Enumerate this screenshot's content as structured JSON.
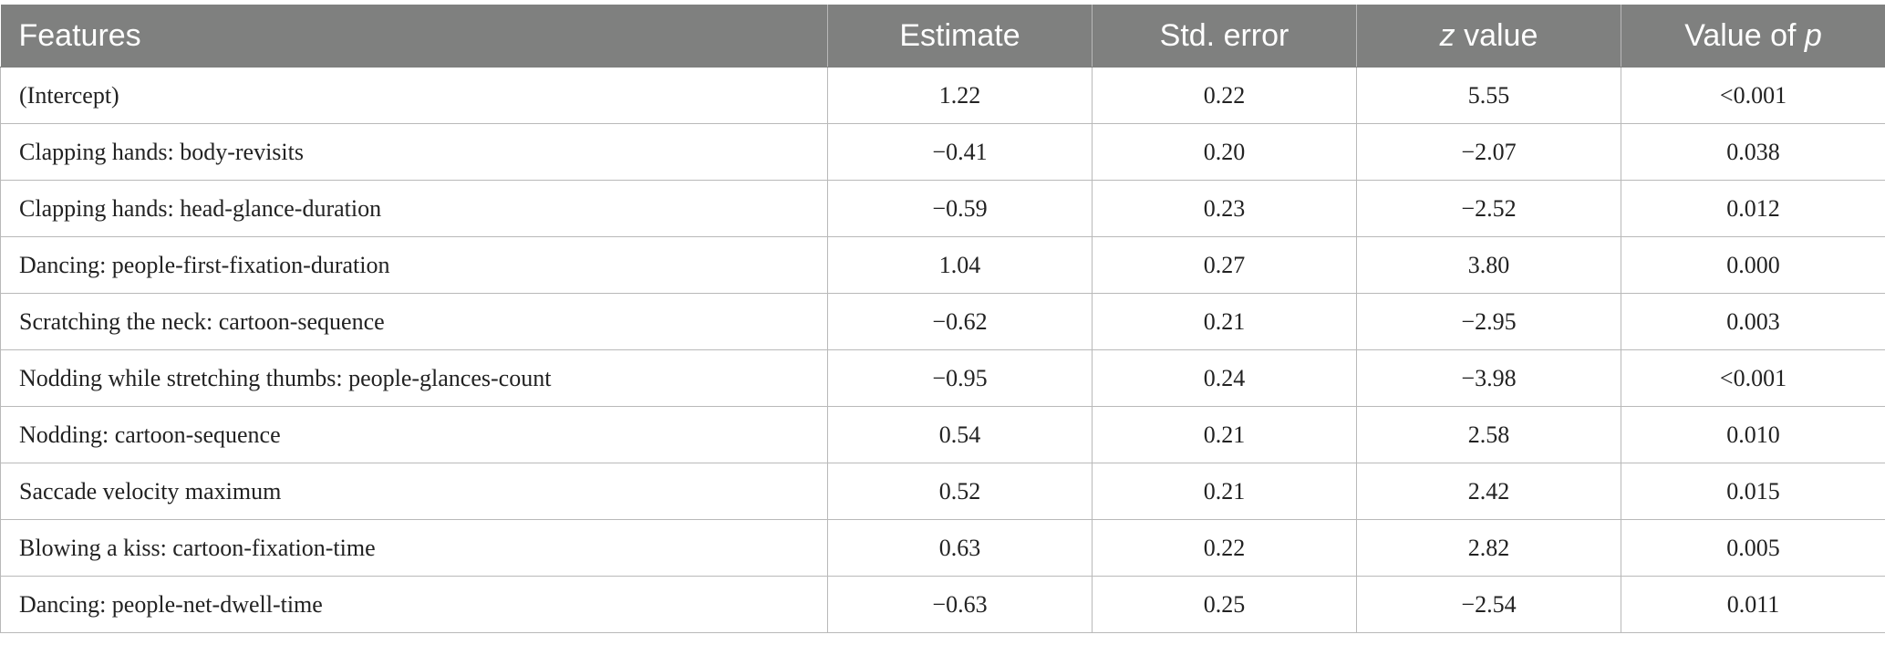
{
  "table": {
    "headers": {
      "features": "Features",
      "estimate": "Estimate",
      "std_error": "Std. error",
      "z_value_italic": "z",
      "z_value_rest": " value",
      "p_value_prefix": "Value of ",
      "p_value_italic": "p"
    },
    "rows": [
      {
        "feature": "(Intercept)",
        "estimate": "1.22",
        "std_error": "0.22",
        "z_value": "5.55",
        "p_value": "<0.001"
      },
      {
        "feature": "Clapping hands: body-revisits",
        "estimate": "−0.41",
        "std_error": "0.20",
        "z_value": "−2.07",
        "p_value": "0.038"
      },
      {
        "feature": "Clapping hands: head-glance-duration",
        "estimate": "−0.59",
        "std_error": "0.23",
        "z_value": "−2.52",
        "p_value": "0.012"
      },
      {
        "feature": "Dancing: people-first-fixation-duration",
        "estimate": "1.04",
        "std_error": "0.27",
        "z_value": "3.80",
        "p_value": "0.000"
      },
      {
        "feature": "Scratching the neck: cartoon-sequence",
        "estimate": "−0.62",
        "std_error": "0.21",
        "z_value": "−2.95",
        "p_value": "0.003"
      },
      {
        "feature": "Nodding while stretching thumbs: people-glances-count",
        "estimate": "−0.95",
        "std_error": "0.24",
        "z_value": "−3.98",
        "p_value": "<0.001"
      },
      {
        "feature": "Nodding: cartoon-sequence",
        "estimate": "0.54",
        "std_error": "0.21",
        "z_value": "2.58",
        "p_value": "0.010"
      },
      {
        "feature": "Saccade velocity maximum",
        "estimate": "0.52",
        "std_error": "0.21",
        "z_value": "2.42",
        "p_value": "0.015"
      },
      {
        "feature": "Blowing a kiss: cartoon-fixation-time",
        "estimate": "0.63",
        "std_error": "0.22",
        "z_value": "2.82",
        "p_value": "0.005"
      },
      {
        "feature": "Dancing: people-net-dwell-time",
        "estimate": "−0.63",
        "std_error": "0.25",
        "z_value": "−2.54",
        "p_value": "0.011"
      }
    ]
  },
  "colors": {
    "header_background": "#7f807f",
    "header_text": "#ffffff",
    "grid_lines": "#b9b9b9",
    "body_text": "#222222"
  }
}
